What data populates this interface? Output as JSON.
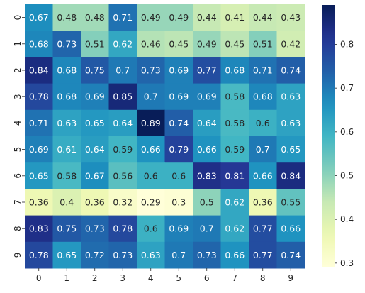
{
  "chart_data": {
    "type": "heatmap",
    "title": "",
    "xlabel": "",
    "ylabel": "",
    "x_categories": [
      "0",
      "1",
      "2",
      "3",
      "4",
      "5",
      "6",
      "7",
      "8",
      "9"
    ],
    "y_categories": [
      "0",
      "1",
      "2",
      "3",
      "4",
      "5",
      "6",
      "7",
      "8",
      "9"
    ],
    "values": [
      [
        0.67,
        0.48,
        0.48,
        0.71,
        0.49,
        0.49,
        0.44,
        0.41,
        0.44,
        0.43
      ],
      [
        0.68,
        0.73,
        0.51,
        0.62,
        0.46,
        0.45,
        0.49,
        0.45,
        0.51,
        0.42
      ],
      [
        0.84,
        0.68,
        0.75,
        0.7,
        0.73,
        0.69,
        0.77,
        0.68,
        0.71,
        0.74
      ],
      [
        0.78,
        0.68,
        0.69,
        0.85,
        0.7,
        0.69,
        0.69,
        0.58,
        0.68,
        0.63
      ],
      [
        0.71,
        0.63,
        0.65,
        0.64,
        0.89,
        0.74,
        0.64,
        0.58,
        0.6,
        0.63
      ],
      [
        0.69,
        0.61,
        0.64,
        0.59,
        0.66,
        0.79,
        0.66,
        0.59,
        0.7,
        0.65
      ],
      [
        0.65,
        0.58,
        0.67,
        0.56,
        0.6,
        0.6,
        0.83,
        0.81,
        0.66,
        0.84
      ],
      [
        0.36,
        0.4,
        0.36,
        0.32,
        0.29,
        0.3,
        0.5,
        0.62,
        0.36,
        0.55
      ],
      [
        0.83,
        0.75,
        0.73,
        0.78,
        0.6,
        0.69,
        0.7,
        0.62,
        0.77,
        0.66
      ],
      [
        0.78,
        0.65,
        0.72,
        0.73,
        0.63,
        0.7,
        0.73,
        0.66,
        0.77,
        0.74
      ]
    ],
    "colormap": "YlGnBu",
    "colorbar": {
      "range": [
        0.29,
        0.89
      ],
      "ticks": [
        0.3,
        0.4,
        0.5,
        0.6,
        0.7,
        0.8
      ],
      "tick_labels": [
        "0.3",
        "0.4",
        "0.5",
        "0.6",
        "0.7",
        "0.8"
      ]
    },
    "annotated": true,
    "grid": false
  }
}
